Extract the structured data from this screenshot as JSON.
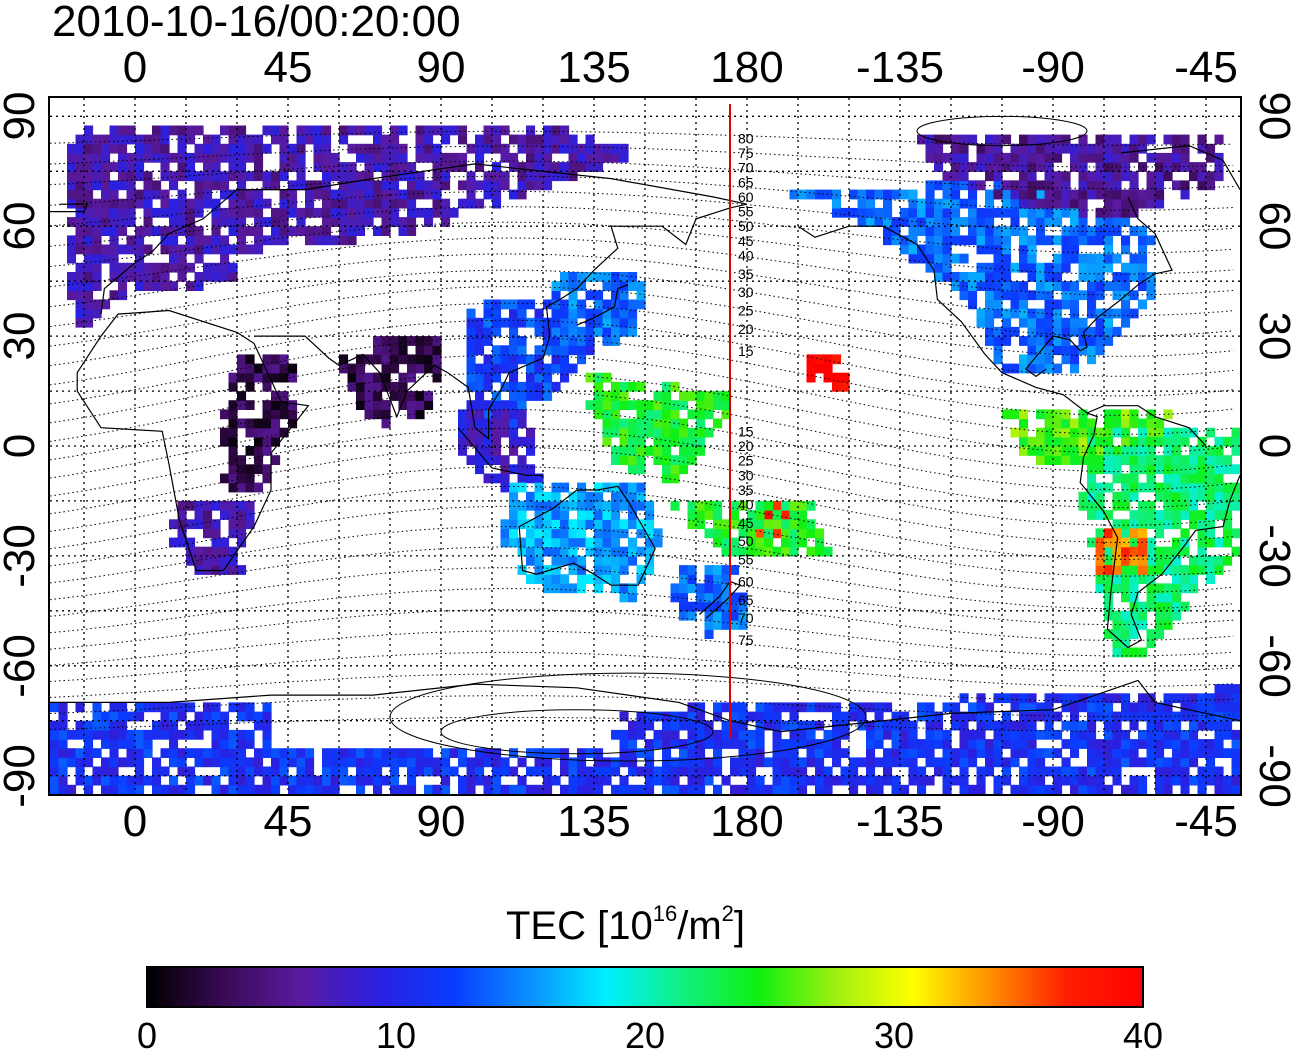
{
  "title": "2010-10-16/00:20:00",
  "axes": {
    "top_ticks": [
      "0",
      "45",
      "90",
      "135",
      "180",
      "-135",
      "-90",
      "-45"
    ],
    "bottom_ticks": [
      "0",
      "45",
      "90",
      "135",
      "180",
      "-135",
      "-90",
      "-45"
    ],
    "left_ticks": [
      "90",
      "60",
      "30",
      "0",
      "-30",
      "-60",
      "-90"
    ],
    "right_ticks": [
      "90",
      "60",
      "30",
      "0",
      "-30",
      "-60",
      "-90"
    ],
    "lon_range": [
      -25,
      325
    ],
    "lat_range": [
      -95,
      95
    ]
  },
  "meridian": {
    "longitude": 175,
    "color": "#e00000",
    "labels": [
      "80",
      "75",
      "70",
      "65",
      "60",
      "55",
      "50",
      "45",
      "40",
      "35",
      "30",
      "25",
      "20",
      "15",
      "15",
      "20",
      "25",
      "30",
      "35",
      "40",
      "45",
      "50",
      "55",
      "60",
      "65",
      "70",
      "75"
    ]
  },
  "colorbar": {
    "label_main": "TEC  [10",
    "label_sup1": "16",
    "label_mid": "/m",
    "label_sup2": "2",
    "label_end": "]",
    "min": 0,
    "max": 40,
    "ticks": [
      "0",
      "10",
      "20",
      "30",
      "40"
    ],
    "colormap": [
      "#000000",
      "#3a0a55",
      "#5a1aa0",
      "#2a20e0",
      "#0a3cff",
      "#0a90ff",
      "#00f0ff",
      "#10f080",
      "#10f010",
      "#a0f010",
      "#ffff00",
      "#ff9000",
      "#ff2000",
      "#ff0000"
    ]
  },
  "tec_patches": [
    {
      "region": "europe-asia-north",
      "value": 7
    },
    {
      "region": "africa",
      "value": 3
    },
    {
      "region": "southern-africa",
      "value": 7
    },
    {
      "region": "india",
      "value": 3
    },
    {
      "region": "east-asia",
      "value": 12
    },
    {
      "region": "japan",
      "value": 14
    },
    {
      "region": "indonesia",
      "value": 8
    },
    {
      "region": "australia",
      "value": 16
    },
    {
      "region": "new-zealand",
      "value": 14
    },
    {
      "region": "pacific-north-hot",
      "value": 40
    },
    {
      "region": "pacific-south-hot",
      "value": 38
    },
    {
      "region": "pacific-green",
      "value": 24
    },
    {
      "region": "north-america",
      "value": 14
    },
    {
      "region": "central-america",
      "value": 26
    },
    {
      "region": "south-america",
      "value": 22
    },
    {
      "region": "south-america-hot",
      "value": 35
    },
    {
      "region": "antarctica",
      "value": 11
    },
    {
      "region": "arctic",
      "value": 6
    }
  ]
}
